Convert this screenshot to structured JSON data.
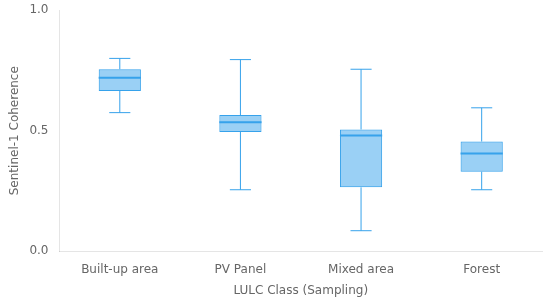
{
  "chart_data": {
    "type": "box",
    "xlabel": "LULC Class (Sampling)",
    "ylabel": "Sentinel-1 Coherence",
    "categories": [
      "Built-up area",
      "PV Panel",
      "Mixed area",
      "Forest"
    ],
    "box_stats": [
      {
        "whislo": 0.575,
        "q1": 0.665,
        "med": 0.72,
        "q3": 0.755,
        "whishi": 0.8
      },
      {
        "whislo": 0.255,
        "q1": 0.495,
        "med": 0.535,
        "q3": 0.565,
        "whishi": 0.795
      },
      {
        "whislo": 0.085,
        "q1": 0.265,
        "med": 0.48,
        "q3": 0.505,
        "whishi": 0.755
      },
      {
        "whislo": 0.255,
        "q1": 0.33,
        "med": 0.405,
        "q3": 0.455,
        "whishi": 0.595
      }
    ],
    "ylim": [
      0.0,
      1.0
    ],
    "yticks": [
      {
        "value": 0,
        "label": "0.0"
      },
      0.5,
      {
        "value": 1,
        "label": "1.0"
      }
    ],
    "grid": false
  }
}
